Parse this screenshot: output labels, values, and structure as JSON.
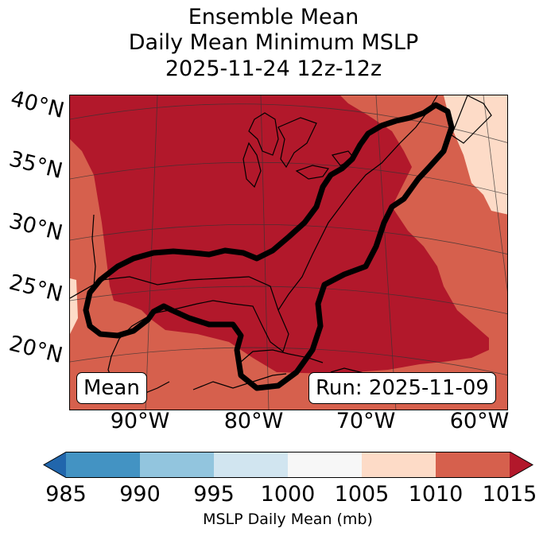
{
  "title": {
    "line1": "Ensemble Mean",
    "line2": "Daily Mean Minimum MSLP",
    "line3": "2025-11-24 12z-12z"
  },
  "map": {
    "lat_labels": [
      "40°N",
      "35°N",
      "30°N",
      "25°N",
      "20°N"
    ],
    "lon_labels": [
      "90°W",
      "80°W",
      "70°W",
      "60°W"
    ],
    "mean_label": "Mean",
    "run_label": "Run: 2025-11-09",
    "contour_color": "#000000",
    "fill_colors": {
      "1015_plus": "#b2182b",
      "1010_1015": "#d6604d",
      "1005_1010": "#fddbc7"
    }
  },
  "colorbar": {
    "ticks": [
      "985",
      "990",
      "995",
      "1000",
      "1005",
      "1010",
      "1015"
    ],
    "colors": [
      "#2166ac",
      "#4393c3",
      "#92c5de",
      "#d1e5f0",
      "#f7f7f7",
      "#fddbc7",
      "#d6604d",
      "#b2182b"
    ],
    "label": "MSLP Daily Mean (mb)"
  }
}
